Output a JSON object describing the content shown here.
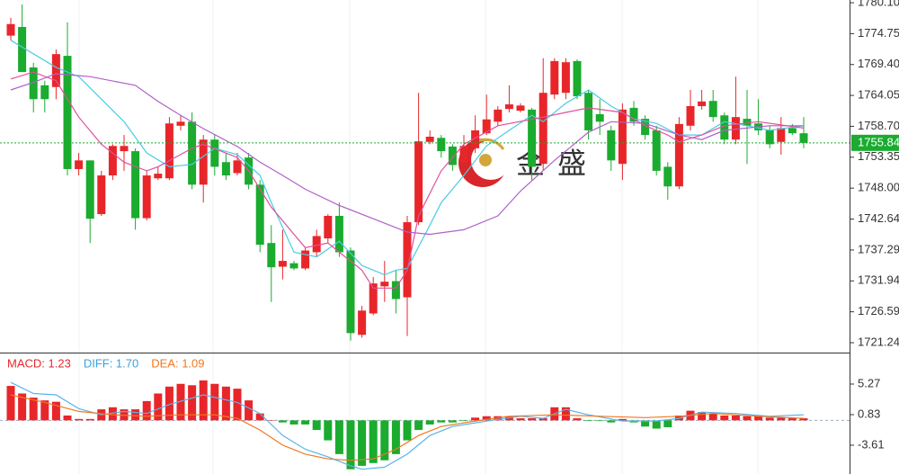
{
  "chart_data": [
    {
      "type": "candlestick",
      "up_color": "#e8262a",
      "down_color": "#1aab2f",
      "ylim": [
        1719.53,
        1780.57
      ],
      "yticks": [
        {
          "value": 1780.1,
          "label": "1780.10"
        },
        1774.75,
        {
          "value": 1769.4,
          "label": "1769.40"
        },
        1764.05,
        {
          "value": 1758.7,
          "label": "1758.70"
        },
        1753.35,
        {
          "value": 1748.0,
          "label": "1748.00"
        },
        1742.64,
        1737.29,
        1731.94,
        1726.59,
        1721.24
      ],
      "last_price": 1755.84,
      "last_color": "#1aab2f",
      "watermark": "金盛",
      "open": [
        1774.4,
        1775.9,
        1768.9,
        1765.8,
        1765.5,
        1770.9,
        1751.3,
        1752.8,
        1743.5,
        1750.2,
        1754.4,
        1754.4,
        1742.8,
        1749.7,
        1749.7,
        1758.8,
        1759.5,
        1748.6,
        1756.4,
        1752.5,
        1750.6,
        1753.3,
        1748.6,
        1738.5,
        1734.4,
        1735.0,
        1734.1,
        1736.9,
        1739.3,
        1743.2,
        1737.2,
        1722.6,
        1726.3,
        1731.0,
        1731.9,
        1729.1,
        1742.1,
        1756.0,
        1756.7,
        1755.2,
        1752.5,
        1754.9,
        1757.5,
        1759.5,
        1761.7,
        1761.4,
        1761.6,
        1752.2,
        1764.2,
        1764.5,
        1770.0,
        1764.5,
        1760.8,
        1758.0,
        1752.2,
        1761.9,
        1760.0,
        1758.0,
        1751.7,
        1748.3,
        1758.8,
        1762.2,
        1763.1,
        1760.6,
        1756.4,
        1760.0,
        1759.2,
        1758.0,
        1756.0,
        1758.4,
        1757.5
      ],
      "high": [
        1777.5,
        1779.8,
        1769.7,
        1766.6,
        1772.0,
        1776.7,
        1754.1,
        1752.8,
        1751.0,
        1755.6,
        1757.2,
        1754.9,
        1751.0,
        1751.7,
        1760.3,
        1760.6,
        1761.1,
        1757.2,
        1757.2,
        1754.1,
        1754.1,
        1754.1,
        1749.4,
        1741.6,
        1740.8,
        1735.4,
        1737.7,
        1740.8,
        1743.5,
        1745.5,
        1737.7,
        1727.6,
        1732.6,
        1735.4,
        1733.8,
        1743.2,
        1764.5,
        1758.0,
        1757.2,
        1755.6,
        1757.2,
        1760.6,
        1764.2,
        1762.2,
        1765.8,
        1762.7,
        1761.9,
        1770.5,
        1770.5,
        1770.5,
        1770.3,
        1765.0,
        1763.4,
        1758.8,
        1762.7,
        1763.1,
        1760.6,
        1758.8,
        1752.5,
        1760.3,
        1765.0,
        1765.0,
        1765.0,
        1761.1,
        1767.3,
        1765.0,
        1763.4,
        1758.8,
        1760.3,
        1759.1,
        1760.3
      ],
      "low": [
        1773.6,
        1768.1,
        1761.1,
        1761.1,
        1763.4,
        1750.2,
        1750.2,
        1738.5,
        1743.2,
        1749.4,
        1751.0,
        1740.8,
        1742.4,
        1749.4,
        1749.4,
        1758.0,
        1747.8,
        1745.5,
        1750.2,
        1749.4,
        1750.2,
        1747.8,
        1736.9,
        1728.3,
        1732.2,
        1733.8,
        1733.8,
        1736.1,
        1738.5,
        1736.1,
        1721.6,
        1722.1,
        1726.0,
        1728.3,
        1726.3,
        1722.4,
        1741.6,
        1755.6,
        1753.3,
        1751.0,
        1751.7,
        1754.1,
        1757.2,
        1758.8,
        1761.1,
        1761.1,
        1749.4,
        1751.0,
        1763.4,
        1763.4,
        1763.4,
        1756.4,
        1757.2,
        1751.0,
        1749.4,
        1758.8,
        1756.4,
        1750.2,
        1746.0,
        1747.8,
        1758.0,
        1761.6,
        1759.5,
        1755.6,
        1755.6,
        1752.2,
        1757.2,
        1754.9,
        1753.8,
        1757.2,
        1754.9
      ],
      "close": [
        1776.4,
        1768.1,
        1763.4,
        1763.4,
        1771.2,
        1751.3,
        1752.8,
        1742.7,
        1750.2,
        1755.3,
        1755.3,
        1742.8,
        1750.2,
        1750.5,
        1759.2,
        1759.5,
        1748.6,
        1756.4,
        1751.7,
        1750.2,
        1752.8,
        1748.6,
        1738.2,
        1734.3,
        1735.4,
        1734.1,
        1737.2,
        1739.7,
        1743.2,
        1736.9,
        1722.9,
        1726.8,
        1731.5,
        1731.8,
        1728.8,
        1742.1,
        1756.1,
        1756.9,
        1754.4,
        1752.0,
        1755.3,
        1758.0,
        1759.9,
        1761.6,
        1762.5,
        1762.3,
        1751.7,
        1764.5,
        1770.0,
        1769.8,
        1763.9,
        1758.0,
        1759.5,
        1752.8,
        1761.6,
        1759.5,
        1757.2,
        1751.0,
        1748.3,
        1759.1,
        1762.2,
        1763.0,
        1760.3,
        1756.4,
        1760.3,
        1758.8,
        1758.0,
        1755.6,
        1758.4,
        1757.5,
        1755.84
      ],
      "series": [
        {
          "color": "#4ccbe4",
          "x": [
            0,
            4,
            6,
            8,
            10,
            12,
            14,
            16,
            18,
            20,
            22,
            23,
            25,
            27,
            29,
            31,
            33,
            34,
            35,
            37,
            38,
            40,
            42,
            44,
            46,
            47,
            49,
            51,
            53,
            55,
            57,
            59,
            61,
            63,
            65,
            67,
            70
          ],
          "values": [
            1773.6,
            1768.9,
            1767.3,
            1763.4,
            1759.5,
            1754.1,
            1751.7,
            1752.1,
            1754.9,
            1753.8,
            1750.2,
            1745.5,
            1736.9,
            1736.1,
            1738.8,
            1734.6,
            1733.0,
            1733.8,
            1734.1,
            1741.6,
            1745.5,
            1750.2,
            1755.3,
            1758.0,
            1760.6,
            1759.5,
            1762.7,
            1765.0,
            1762.2,
            1760.0,
            1759.2,
            1757.2,
            1757.2,
            1759.5,
            1758.8,
            1758.0,
            1758.8
          ]
        },
        {
          "color": "#e0509a",
          "x": [
            0,
            2,
            4,
            6,
            8,
            10,
            12,
            13,
            16,
            17,
            20,
            21,
            23,
            25,
            26,
            28,
            29,
            31,
            32,
            34,
            35,
            36,
            38,
            40,
            43,
            47,
            49,
            51,
            54,
            56,
            58,
            59,
            61,
            63,
            66,
            70
          ],
          "values": [
            1766.9,
            1768.1,
            1766.6,
            1760.3,
            1755.6,
            1752.5,
            1751.0,
            1751.7,
            1754.9,
            1755.6,
            1753.3,
            1751.0,
            1744.7,
            1740.0,
            1737.7,
            1738.5,
            1736.9,
            1733.8,
            1730.7,
            1730.7,
            1733.8,
            1743.2,
            1751.0,
            1755.6,
            1758.8,
            1760.3,
            1761.1,
            1761.9,
            1761.1,
            1758.8,
            1757.2,
            1756.0,
            1757.2,
            1758.8,
            1759.5,
            1758.4
          ]
        },
        {
          "color": "#b060c8",
          "x": [
            0,
            2,
            4,
            7,
            11,
            13,
            15,
            17,
            20,
            22,
            24,
            26,
            29,
            32,
            35,
            37,
            40,
            43,
            45,
            48,
            51,
            53,
            56,
            59,
            61,
            63,
            67,
            70
          ],
          "values": [
            1765.0,
            1766.3,
            1767.8,
            1767.3,
            1765.8,
            1763.0,
            1760.6,
            1758.3,
            1755.2,
            1752.5,
            1750.2,
            1747.8,
            1745.0,
            1742.7,
            1740.4,
            1740.0,
            1740.8,
            1743.2,
            1747.5,
            1752.8,
            1757.7,
            1759.5,
            1759.2,
            1757.2,
            1756.4,
            1758.0,
            1758.8,
            1758.8
          ]
        }
      ]
    },
    {
      "type": "macd",
      "up_color": "#e8262a",
      "down_color": "#1aab2f",
      "legend": [
        {
          "text": "MACD: 1.23",
          "color": "#e8262a"
        },
        {
          "text": "DIFF: 1.70",
          "color": "#3aa0e0"
        },
        {
          "text": "DEA: 1.09",
          "color": "#f07820"
        }
      ],
      "ylim": [
        -7.79,
        9.71
      ],
      "yticks": [
        5.27,
        0.83,
        -3.61
      ],
      "values": [
        5.0,
        3.9,
        3.3,
        2.9,
        2.7,
        0.7,
        0.2,
        0.2,
        1.6,
        1.9,
        1.6,
        1.6,
        2.8,
        3.9,
        4.9,
        5.3,
        5.1,
        5.8,
        5.3,
        4.9,
        4.6,
        2.9,
        1.0,
        0.05,
        -0.3,
        -0.6,
        -0.6,
        -1.4,
        -2.9,
        -4.9,
        -7.1,
        -6.6,
        -6.2,
        -5.8,
        -4.9,
        -2.9,
        -1.4,
        -0.6,
        -0.3,
        -0.3,
        -0.1,
        0.4,
        0.6,
        0.6,
        0.6,
        0.3,
        0.3,
        0.3,
        1.9,
        1.9,
        0.3,
        -0.1,
        -0.1,
        -0.3,
        0.2,
        -0.3,
        -0.9,
        -1.2,
        -1.0,
        0.7,
        1.4,
        1.2,
        1.0,
        0.7,
        0.7,
        0.6,
        0.6,
        0.4,
        0.4,
        0.3,
        0.3
      ],
      "series": [
        {
          "color": "#5ab4ec",
          "x": [
            0,
            2,
            4,
            6,
            8,
            10,
            12,
            14,
            17,
            20,
            22,
            24,
            26,
            28,
            30,
            31,
            33,
            35,
            37,
            39,
            42,
            45,
            47,
            49,
            51,
            54,
            57,
            59,
            61,
            64,
            67,
            70
          ],
          "values": [
            5.5,
            3.9,
            3.7,
            1.7,
            0.8,
            1.3,
            1.0,
            2.3,
            3.7,
            2.6,
            1.0,
            -2.2,
            -4.2,
            -5.3,
            -6.6,
            -7.1,
            -6.8,
            -4.9,
            -2.2,
            -0.9,
            -0.1,
            0.6,
            0.3,
            1.6,
            0.8,
            -0.1,
            -0.1,
            0.3,
            1.2,
            1.0,
            0.6,
            0.8
          ]
        },
        {
          "color": "#f07820",
          "x": [
            0,
            3,
            6,
            9,
            12,
            15,
            18,
            20,
            22,
            24,
            26,
            28,
            30,
            32,
            34,
            36,
            38,
            41,
            44,
            48,
            52,
            56,
            59,
            62,
            66,
            70
          ],
          "values": [
            3.7,
            2.6,
            1.3,
            0.8,
            0.6,
            0.8,
            0.8,
            0.3,
            -1.4,
            -3.6,
            -4.9,
            -5.6,
            -5.8,
            -5.6,
            -4.2,
            -2.2,
            -0.9,
            -0.1,
            0.6,
            0.8,
            0.6,
            0.4,
            0.6,
            1.0,
            0.6,
            0.3
          ]
        }
      ]
    }
  ]
}
